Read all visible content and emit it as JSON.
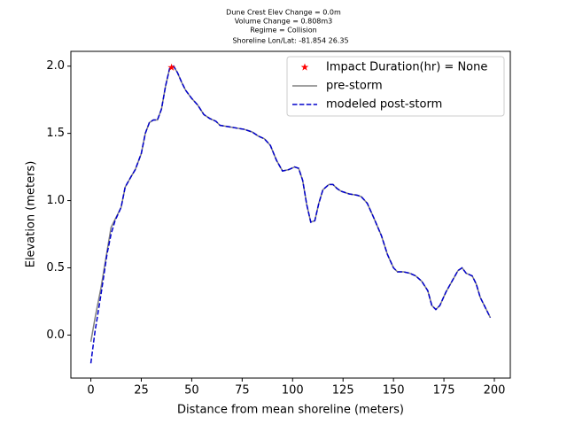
{
  "chart_data": {
    "type": "line",
    "title_lines": [
      "Dune Crest Elev Change = 0.0m",
      "Volume Change = 0.808m3",
      "Regime = Collision",
      "Shoreline Lon/Lat: -81.854 26.35"
    ],
    "x_label": "Distance from mean shoreline (meters)",
    "y_label": "Elevation (meters)",
    "xlim": [
      -9.9,
      207.9
    ],
    "ylim": [
      -0.32,
      2.11
    ],
    "xticks": [
      0,
      25,
      50,
      75,
      100,
      125,
      150,
      175,
      200
    ],
    "yticks": [
      {
        "value": 0,
        "label": "0.0"
      },
      0.5,
      {
        "value": 1,
        "label": "1.0"
      },
      1.5,
      {
        "value": 2,
        "label": "2.0"
      }
    ],
    "legend": "upper right",
    "series": [
      {
        "name": "Impact Duration(hr) = None",
        "kind": "scatter",
        "marker": "star",
        "color": "#ff0000",
        "x": [
          40
        ],
        "values": [
          1.99
        ]
      },
      {
        "name": "pre-storm",
        "kind": "line",
        "linestyle": "solid",
        "color": "#808080",
        "x": [
          0,
          2,
          5,
          8,
          10,
          12,
          15,
          17,
          20,
          22,
          25,
          27,
          29,
          31,
          33,
          35,
          37,
          39,
          41,
          43,
          45,
          47,
          50,
          53,
          56,
          59,
          62,
          64,
          68,
          72,
          76,
          80,
          83,
          86,
          89,
          92,
          95,
          98,
          101,
          103,
          105,
          107,
          109,
          111,
          113,
          115,
          118,
          120,
          122,
          124,
          128,
          132,
          134,
          137,
          140,
          144,
          147,
          150,
          152,
          155,
          158,
          161,
          164,
          167,
          169,
          171,
          173,
          176,
          179,
          182,
          184,
          186,
          189,
          191,
          193,
          196,
          198
        ],
        "values": [
          -0.05,
          0.12,
          0.35,
          0.62,
          0.8,
          0.86,
          0.95,
          1.1,
          1.18,
          1.23,
          1.35,
          1.5,
          1.58,
          1.6,
          1.6,
          1.68,
          1.85,
          1.98,
          2.0,
          1.95,
          1.88,
          1.82,
          1.76,
          1.71,
          1.64,
          1.61,
          1.59,
          1.56,
          1.55,
          1.54,
          1.53,
          1.51,
          1.48,
          1.46,
          1.41,
          1.3,
          1.22,
          1.23,
          1.25,
          1.24,
          1.15,
          0.97,
          0.84,
          0.85,
          0.98,
          1.08,
          1.12,
          1.12,
          1.09,
          1.07,
          1.05,
          1.04,
          1.03,
          0.98,
          0.88,
          0.74,
          0.6,
          0.5,
          0.47,
          0.47,
          0.46,
          0.44,
          0.4,
          0.33,
          0.22,
          0.19,
          0.22,
          0.32,
          0.4,
          0.48,
          0.5,
          0.46,
          0.44,
          0.38,
          0.28,
          0.19,
          0.13
        ]
      },
      {
        "name": "modeled post-storm",
        "kind": "line",
        "linestyle": "dashed",
        "color": "#0000cc",
        "x": [
          0,
          2,
          5,
          8,
          10,
          12,
          15,
          17,
          20,
          22,
          25,
          27,
          29,
          31,
          33,
          35,
          37,
          39,
          41,
          43,
          45,
          47,
          50,
          53,
          56,
          59,
          62,
          64,
          68,
          72,
          76,
          80,
          83,
          86,
          89,
          92,
          95,
          98,
          101,
          103,
          105,
          107,
          109,
          111,
          113,
          115,
          118,
          120,
          122,
          124,
          128,
          132,
          134,
          137,
          140,
          144,
          147,
          150,
          152,
          155,
          158,
          161,
          164,
          167,
          169,
          171,
          173,
          176,
          179,
          182,
          184,
          186,
          189,
          191,
          193,
          196,
          198
        ],
        "values": [
          -0.21,
          0.02,
          0.3,
          0.6,
          0.75,
          0.85,
          0.95,
          1.1,
          1.18,
          1.23,
          1.35,
          1.5,
          1.58,
          1.6,
          1.6,
          1.68,
          1.85,
          1.98,
          2.0,
          1.95,
          1.88,
          1.82,
          1.76,
          1.71,
          1.64,
          1.61,
          1.59,
          1.56,
          1.55,
          1.54,
          1.53,
          1.51,
          1.48,
          1.46,
          1.41,
          1.3,
          1.22,
          1.23,
          1.25,
          1.24,
          1.15,
          0.97,
          0.84,
          0.85,
          0.98,
          1.08,
          1.12,
          1.12,
          1.09,
          1.07,
          1.05,
          1.04,
          1.03,
          0.98,
          0.88,
          0.74,
          0.6,
          0.5,
          0.47,
          0.47,
          0.46,
          0.44,
          0.4,
          0.33,
          0.22,
          0.19,
          0.22,
          0.32,
          0.4,
          0.48,
          0.5,
          0.46,
          0.44,
          0.38,
          0.28,
          0.19,
          0.13
        ]
      }
    ]
  }
}
